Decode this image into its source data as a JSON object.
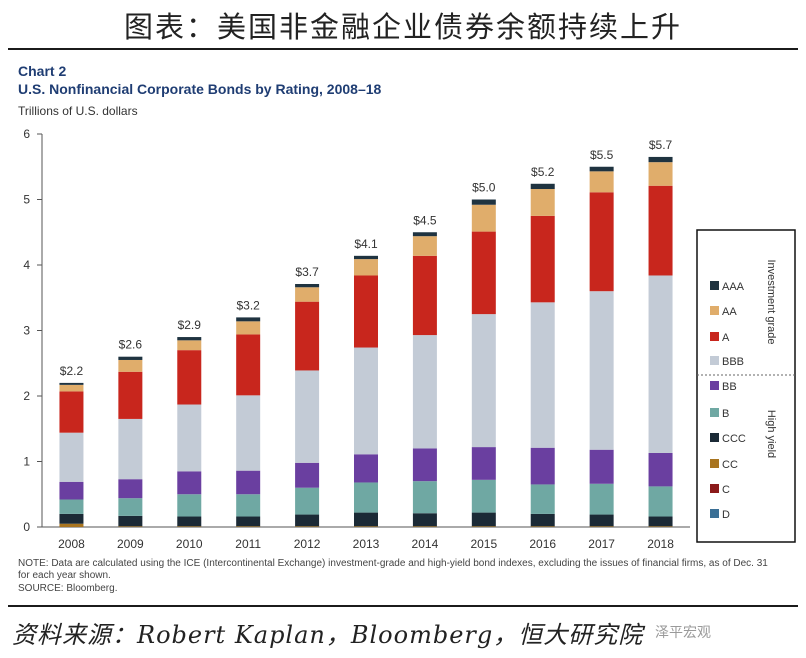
{
  "header": {
    "cn_title": "图表：美国非金融企业债券余额持续上升"
  },
  "chart_meta": {
    "label": "Chart 2",
    "title": "U.S. Nonfinancial Corporate Bonds by Rating, 2008–18",
    "units": "Trillions of U.S. dollars"
  },
  "chart_data": {
    "type": "bar",
    "stacked": true,
    "categories": [
      "2008",
      "2009",
      "2010",
      "2011",
      "2012",
      "2013",
      "2014",
      "2015",
      "2016",
      "2017",
      "2018"
    ],
    "ylim": [
      0,
      6
    ],
    "yticks": [
      0,
      1,
      2,
      3,
      4,
      5,
      6
    ],
    "grid": false,
    "legend_position": "right",
    "totals_labels": [
      "$2.2",
      "$2.6",
      "$2.9",
      "$3.2",
      "$3.7",
      "$4.1",
      "$4.5",
      "$5.0",
      "$5.2",
      "$5.5",
      "$5.7"
    ],
    "series": [
      {
        "name": "D",
        "color": "#3a6f95",
        "values": [
          0.0,
          0.0,
          0.0,
          0.0,
          0.0,
          0.0,
          0.0,
          0.0,
          0.0,
          0.0,
          0.0
        ]
      },
      {
        "name": "C",
        "color": "#8b1a1a",
        "values": [
          0.0,
          0.0,
          0.0,
          0.0,
          0.0,
          0.0,
          0.0,
          0.0,
          0.0,
          0.0,
          0.0
        ]
      },
      {
        "name": "CC",
        "color": "#a8741f",
        "values": [
          0.05,
          0.01,
          0.01,
          0.01,
          0.01,
          0.01,
          0.01,
          0.01,
          0.01,
          0.01,
          0.01
        ]
      },
      {
        "name": "CCC",
        "color": "#1b2a36",
        "values": [
          0.15,
          0.16,
          0.15,
          0.15,
          0.18,
          0.21,
          0.2,
          0.21,
          0.19,
          0.18,
          0.15
        ]
      },
      {
        "name": "B",
        "color": "#6fa8a3",
        "values": [
          0.22,
          0.27,
          0.34,
          0.34,
          0.41,
          0.46,
          0.49,
          0.5,
          0.45,
          0.47,
          0.46
        ]
      },
      {
        "name": "BB",
        "color": "#6a3fa0",
        "values": [
          0.27,
          0.29,
          0.35,
          0.36,
          0.38,
          0.43,
          0.5,
          0.5,
          0.56,
          0.52,
          0.51
        ]
      },
      {
        "name": "BBB",
        "color": "#c3cbd6",
        "values": [
          0.75,
          0.92,
          1.02,
          1.15,
          1.41,
          1.63,
          1.73,
          2.03,
          2.22,
          2.42,
          2.71
        ]
      },
      {
        "name": "A",
        "color": "#c8261d",
        "values": [
          0.63,
          0.72,
          0.83,
          0.93,
          1.05,
          1.1,
          1.21,
          1.26,
          1.32,
          1.51,
          1.37
        ]
      },
      {
        "name": "AA",
        "color": "#e0ad6b",
        "values": [
          0.1,
          0.18,
          0.15,
          0.2,
          0.22,
          0.25,
          0.3,
          0.41,
          0.41,
          0.32,
          0.36
        ]
      },
      {
        "name": "AAA",
        "color": "#1f3340",
        "values": [
          0.03,
          0.05,
          0.05,
          0.06,
          0.05,
          0.05,
          0.06,
          0.08,
          0.08,
          0.07,
          0.08
        ]
      }
    ]
  },
  "legend": {
    "group_investment": "Investment grade",
    "group_high_yield": "High yield",
    "items": [
      "AAA",
      "AA",
      "A",
      "BBB",
      "BB",
      "B",
      "CCC",
      "CC",
      "C",
      "D"
    ]
  },
  "footer": {
    "note": "NOTE: Data are calculated using the ICE (Intercontinental Exchange) investment-grade and high-yield bond indexes, excluding the issues of financial firms, as of Dec. 31 for each year shown.",
    "source": "SOURCE: Bloomberg.",
    "cn_source": "资料来源：Robert Kaplan，Bloomberg，恒大研究院",
    "watermark": "泽平宏观"
  }
}
